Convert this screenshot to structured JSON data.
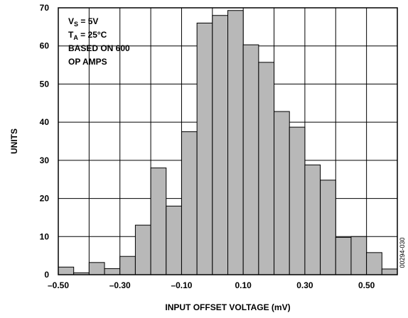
{
  "chart_data": {
    "type": "bar",
    "xlabel": "INPUT OFFSET VOLTAGE (mV)",
    "ylabel": "UNITS",
    "xlim": [
      -0.5,
      0.6
    ],
    "ylim": [
      0,
      70
    ],
    "bin_width": 0.05,
    "bin_starts": [
      -0.5,
      -0.45,
      -0.4,
      -0.35,
      -0.3,
      -0.25,
      -0.2,
      -0.15,
      -0.1,
      -0.05,
      0.0,
      0.05,
      0.1,
      0.15,
      0.2,
      0.25,
      0.3,
      0.35,
      0.4,
      0.45,
      0.5,
      0.55
    ],
    "values": [
      2,
      0.5,
      3.2,
      1.6,
      4.8,
      13,
      28,
      18,
      37.5,
      66,
      68,
      69.3,
      60.3,
      55.7,
      42.8,
      38.7,
      28.8,
      24.8,
      9.8,
      10,
      5.8,
      1.5
    ],
    "y_ticks": [
      "0",
      "10",
      "20",
      "30",
      "40",
      "50",
      "60",
      "70"
    ],
    "y_tick_values": [
      0,
      10,
      20,
      30,
      40,
      50,
      60,
      70
    ],
    "x_ticks": [
      "–0.50",
      "–0.30",
      "–0.10",
      "0.10",
      "0.30",
      "0.50"
    ],
    "x_tick_values": [
      -0.5,
      -0.3,
      -0.1,
      0.1,
      0.3,
      0.5
    ],
    "grid": true,
    "bar_color": "#b8b8b8",
    "grid_color": "#000000",
    "annotation": {
      "line1_main": "V",
      "line1_sub": "S",
      "line1_rest": " = 5V",
      "line2_main": "T",
      "line2_sub": "A",
      "line2_rest": " = 25°C",
      "line3": "BASED ON 600",
      "line4": "OP AMPS"
    },
    "figure_code": "00294-030"
  }
}
